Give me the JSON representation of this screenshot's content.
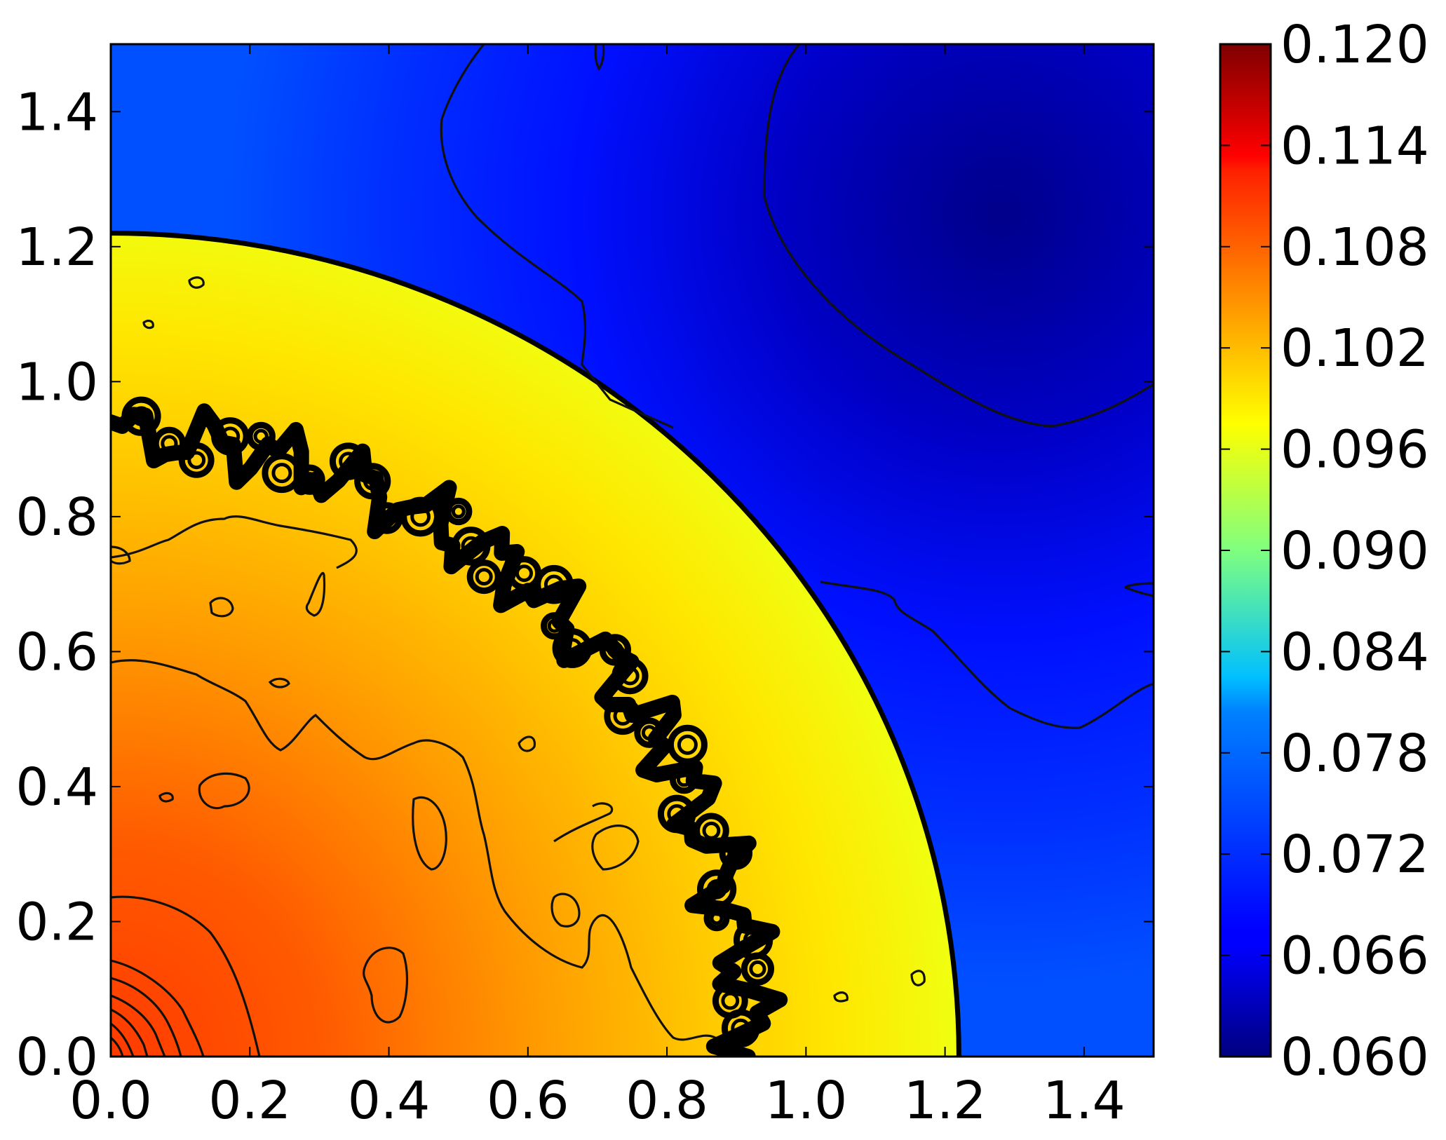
{
  "chart_data": {
    "type": "heatmap",
    "title": "",
    "xlabel": "",
    "ylabel": "",
    "xlim": [
      0.0,
      1.5
    ],
    "ylim": [
      0.0,
      1.5
    ],
    "x_ticks": [
      "0.0",
      "0.2",
      "0.4",
      "0.6",
      "0.8",
      "1.0",
      "1.2",
      "1.4"
    ],
    "y_ticks": [
      "0.0",
      "0.2",
      "0.4",
      "0.6",
      "0.8",
      "1.0",
      "1.2",
      "1.4"
    ],
    "colorbar": {
      "colormap": "jet",
      "range": [
        0.06,
        0.12
      ],
      "ticks": [
        "0.060",
        "0.066",
        "0.072",
        "0.078",
        "0.084",
        "0.090",
        "0.096",
        "0.102",
        "0.108",
        "0.114",
        "0.120"
      ]
    },
    "field": {
      "description_values": [
        {
          "region": "center (0,0)",
          "value": 0.111
        },
        {
          "region": "inner shell r~0.6",
          "value": 0.105
        },
        {
          "region": "shell behind front r~1.0",
          "value": 0.1
        },
        {
          "region": "ambient outside front",
          "value": 0.066
        },
        {
          "region": "far corner (1.3,1.3)",
          "value": 0.061
        }
      ],
      "shock_front_radius": 1.22,
      "mixing_layer_radius": 0.92
    },
    "grid": false,
    "contours": true
  }
}
